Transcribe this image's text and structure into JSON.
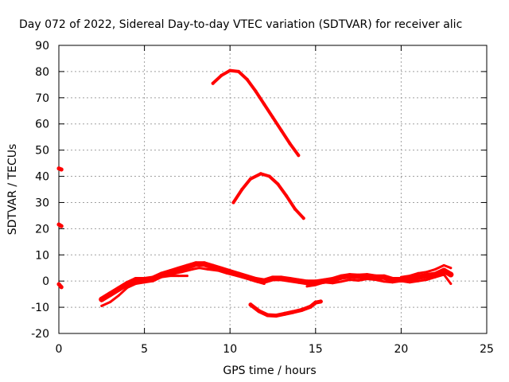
{
  "chart_data": {
    "type": "scatter",
    "title": "Day 072 of 2022, Sidereal Day-to-day VTEC variation (SDTVAR) for receiver alic",
    "xlabel": "GPS time / hours",
    "ylabel": "SDTVAR / TECUs",
    "xlim": [
      0,
      25
    ],
    "ylim": [
      -20,
      90
    ],
    "xticks": [
      0,
      5,
      10,
      15,
      20,
      25
    ],
    "yticks": [
      -20,
      -10,
      0,
      10,
      20,
      30,
      40,
      50,
      60,
      70,
      80,
      90
    ],
    "grid": true,
    "legend": "none",
    "color": "#ff0000",
    "series": [
      {
        "width": 5,
        "points": [
          [
            0.0,
            43.0
          ],
          [
            0.15,
            42.6
          ]
        ]
      },
      {
        "width": 5,
        "points": [
          [
            0.0,
            21.6
          ],
          [
            0.15,
            21.0
          ]
        ]
      },
      {
        "width": 5,
        "points": [
          [
            0.0,
            -1.2
          ],
          [
            0.15,
            -2.3
          ]
        ]
      },
      {
        "width": 4,
        "points": [
          [
            9.0,
            75.5
          ],
          [
            9.5,
            78.5
          ],
          [
            10.0,
            80.4
          ],
          [
            10.5,
            80.0
          ],
          [
            11.0,
            77.0
          ],
          [
            11.5,
            72.5
          ],
          [
            12.0,
            67.5
          ],
          [
            12.5,
            62.5
          ],
          [
            13.0,
            57.5
          ],
          [
            13.5,
            52.5
          ],
          [
            14.0,
            48.0
          ]
        ]
      },
      {
        "width": 4,
        "points": [
          [
            10.2,
            30.0
          ],
          [
            10.7,
            35.0
          ],
          [
            11.2,
            39.0
          ],
          [
            11.8,
            41.0
          ],
          [
            12.3,
            40.0
          ],
          [
            12.8,
            37.0
          ],
          [
            13.3,
            32.5
          ],
          [
            13.8,
            27.5
          ],
          [
            14.3,
            24.0
          ]
        ]
      },
      {
        "width": 5,
        "points": [
          [
            11.2,
            -9.0
          ],
          [
            11.7,
            -11.5
          ],
          [
            12.2,
            -13.0
          ],
          [
            12.7,
            -13.2
          ],
          [
            13.2,
            -12.5
          ],
          [
            13.7,
            -11.8
          ],
          [
            14.2,
            -11.0
          ],
          [
            14.7,
            -9.8
          ],
          [
            15.0,
            -8.2
          ],
          [
            15.3,
            -7.8
          ]
        ]
      },
      {
        "width": 7,
        "points": [
          [
            2.5,
            -7.0
          ],
          [
            3.0,
            -5.0
          ],
          [
            3.5,
            -3.0
          ],
          [
            4.0,
            -1.0
          ],
          [
            4.5,
            0.5
          ],
          [
            5.0,
            0.5
          ],
          [
            5.5,
            1.0
          ],
          [
            6.0,
            2.5
          ],
          [
            6.5,
            3.5
          ],
          [
            7.0,
            4.5
          ],
          [
            7.5,
            5.5
          ],
          [
            8.0,
            6.5
          ],
          [
            8.5,
            6.5
          ],
          [
            9.0,
            5.5
          ],
          [
            9.5,
            4.5
          ],
          [
            10.0,
            3.5
          ],
          [
            10.5,
            2.5
          ],
          [
            11.0,
            1.5
          ],
          [
            11.5,
            0.5
          ],
          [
            12.0,
            0.0
          ],
          [
            12.5,
            1.0
          ],
          [
            13.0,
            1.0
          ],
          [
            13.5,
            0.5
          ],
          [
            14.0,
            0.0
          ],
          [
            14.5,
            -0.5
          ],
          [
            15.0,
            -0.5
          ],
          [
            15.5,
            0.0
          ],
          [
            16.0,
            0.5
          ],
          [
            16.5,
            1.5
          ],
          [
            17.0,
            2.0
          ],
          [
            17.5,
            1.8
          ],
          [
            18.0,
            2.0
          ],
          [
            18.5,
            1.5
          ],
          [
            19.0,
            1.5
          ],
          [
            19.5,
            0.5
          ],
          [
            20.0,
            0.5
          ],
          [
            20.5,
            0.5
          ],
          [
            21.0,
            1.5
          ],
          [
            21.5,
            2.0
          ],
          [
            22.0,
            2.5
          ],
          [
            22.5,
            4.0
          ],
          [
            22.9,
            2.5
          ]
        ]
      },
      {
        "width": 3,
        "points": [
          [
            2.5,
            -9.5
          ],
          [
            3.0,
            -8.0
          ],
          [
            3.5,
            -5.5
          ],
          [
            4.0,
            -2.5
          ],
          [
            4.5,
            -1.0
          ],
          [
            5.0,
            -0.5
          ],
          [
            5.5,
            0.0
          ],
          [
            6.0,
            1.5
          ],
          [
            6.5,
            2.0
          ],
          [
            7.0,
            2.0
          ],
          [
            7.5,
            2.0
          ]
        ]
      },
      {
        "width": 3,
        "points": [
          [
            5.2,
            0.5
          ],
          [
            5.8,
            1.5
          ],
          [
            6.5,
            2.5
          ],
          [
            7.2,
            3.5
          ],
          [
            7.8,
            4.5
          ],
          [
            8.2,
            5.0
          ],
          [
            8.7,
            4.5
          ],
          [
            9.3,
            4.0
          ],
          [
            9.8,
            3.0
          ],
          [
            10.4,
            2.0
          ],
          [
            11.0,
            1.0
          ],
          [
            11.6,
            -0.3
          ],
          [
            12.0,
            -1.0
          ]
        ]
      },
      {
        "width": 3,
        "points": [
          [
            14.5,
            -2.0
          ],
          [
            15.0,
            -1.5
          ],
          [
            15.5,
            -0.5
          ],
          [
            16.0,
            -0.8
          ],
          [
            16.5,
            -0.2
          ],
          [
            17.0,
            0.5
          ],
          [
            17.5,
            0.2
          ],
          [
            18.0,
            0.8
          ],
          [
            18.5,
            0.5
          ],
          [
            19.0,
            -0.2
          ],
          [
            19.5,
            -0.5
          ],
          [
            20.0,
            0.0
          ],
          [
            20.5,
            -0.5
          ],
          [
            21.0,
            0.0
          ],
          [
            21.5,
            0.5
          ],
          [
            22.0,
            1.5
          ],
          [
            22.5,
            2.5
          ],
          [
            22.9,
            -1.0
          ]
        ]
      },
      {
        "width": 3,
        "points": [
          [
            20.0,
            1.5
          ],
          [
            20.5,
            2.0
          ],
          [
            21.0,
            3.0
          ],
          [
            21.5,
            3.5
          ],
          [
            22.0,
            4.5
          ],
          [
            22.5,
            6.0
          ],
          [
            22.9,
            5.0
          ]
        ]
      }
    ]
  }
}
